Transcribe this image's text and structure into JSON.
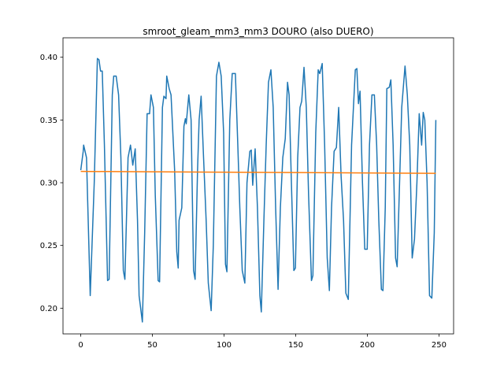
{
  "chart_data": {
    "type": "line",
    "title": "smroot_gleam_mm3_mm3 DOURO (also DUERO)",
    "xlim": [
      -12.4,
      260.2
    ],
    "ylim": [
      0.1795,
      0.4155
    ],
    "xticks": [
      0,
      50,
      100,
      150,
      200,
      250
    ],
    "yticks": [
      {
        "value": 0.2,
        "label": "0.20"
      },
      0.25,
      {
        "value": 0.3,
        "label": "0.30"
      },
      0.35,
      {
        "value": 0.4,
        "label": "0.40"
      }
    ],
    "series": [
      {
        "color": "#1f77b4",
        "x": [
          0,
          1.7,
          2,
          4,
          6.6,
          9.4,
          11.6,
          12.7,
          13.8,
          15,
          16.5,
          18.7,
          19.8,
          22,
          23,
          24.7,
          26.4,
          28,
          29.7,
          30.8,
          33,
          34.7,
          36.3,
          38,
          39.6,
          40.7,
          43,
          44.6,
          46.3,
          48,
          49,
          50.7,
          52,
          54,
          55,
          57,
          58,
          59.5,
          60,
          61.7,
          63,
          65.5,
          67,
          68,
          68.6,
          70.5,
          72,
          73,
          73.6,
          75.4,
          77,
          78.7,
          79.8,
          81.5,
          82.6,
          84,
          85.7,
          87.5,
          89,
          91,
          92.5,
          94.7,
          96.4,
          98,
          99.7,
          101,
          102,
          104,
          105.7,
          107.9,
          109.6,
          111,
          112.7,
          114.5,
          116,
          118,
          119,
          120,
          121.7,
          123.3,
          125,
          126,
          127.8,
          129.4,
          131,
          132.7,
          134.3,
          136,
          137.7,
          139.3,
          141,
          142.7,
          144.3,
          145.4,
          147,
          148.7,
          149.8,
          151.4,
          153,
          154.2,
          155.8,
          157.4,
          159,
          161,
          162,
          164,
          165.7,
          166.8,
          168.5,
          170.2,
          172,
          173.5,
          175,
          176.8,
          178.4,
          180,
          181.7,
          183.4,
          185,
          186.7,
          189,
          191.6,
          192.7,
          193.8,
          194.9,
          196.6,
          198.2,
          199.9,
          201.5,
          203.2,
          204.9,
          206.5,
          208,
          209.8,
          210.9,
          212.5,
          213.6,
          215.3,
          216.4,
          218,
          219.7,
          220.8,
          222.5,
          224,
          226.3,
          227.9,
          229.6,
          231.3,
          232.9,
          234.6,
          236.2,
          237.9,
          239,
          240.1,
          241.7,
          243.4,
          245,
          246.7,
          247.8
        ],
        "values": [
          0.31,
          0.325,
          0.33,
          0.32,
          0.21,
          0.3,
          0.399,
          0.398,
          0.389,
          0.389,
          0.33,
          0.222,
          0.223,
          0.37,
          0.385,
          0.385,
          0.37,
          0.32,
          0.23,
          0.223,
          0.32,
          0.33,
          0.314,
          0.327,
          0.27,
          0.21,
          0.189,
          0.26,
          0.355,
          0.355,
          0.37,
          0.36,
          0.29,
          0.222,
          0.221,
          0.36,
          0.369,
          0.367,
          0.385,
          0.375,
          0.37,
          0.31,
          0.245,
          0.232,
          0.27,
          0.28,
          0.345,
          0.351,
          0.347,
          0.37,
          0.35,
          0.23,
          0.223,
          0.31,
          0.35,
          0.369,
          0.32,
          0.27,
          0.22,
          0.198,
          0.25,
          0.385,
          0.396,
          0.385,
          0.34,
          0.235,
          0.229,
          0.35,
          0.387,
          0.387,
          0.33,
          0.28,
          0.23,
          0.22,
          0.3,
          0.325,
          0.326,
          0.298,
          0.327,
          0.28,
          0.21,
          0.197,
          0.27,
          0.33,
          0.38,
          0.39,
          0.36,
          0.28,
          0.215,
          0.28,
          0.32,
          0.335,
          0.38,
          0.37,
          0.3,
          0.23,
          0.232,
          0.32,
          0.36,
          0.365,
          0.392,
          0.36,
          0.29,
          0.222,
          0.226,
          0.34,
          0.39,
          0.387,
          0.395,
          0.33,
          0.24,
          0.214,
          0.28,
          0.325,
          0.328,
          0.36,
          0.305,
          0.27,
          0.212,
          0.207,
          0.33,
          0.39,
          0.391,
          0.363,
          0.373,
          0.3,
          0.247,
          0.247,
          0.33,
          0.37,
          0.37,
          0.33,
          0.27,
          0.215,
          0.214,
          0.28,
          0.375,
          0.376,
          0.382,
          0.33,
          0.24,
          0.233,
          0.3,
          0.36,
          0.393,
          0.37,
          0.33,
          0.24,
          0.255,
          0.3,
          0.355,
          0.33,
          0.356,
          0.35,
          0.3,
          0.21,
          0.208,
          0.26,
          0.35
        ]
      },
      {
        "color": "#ff7f0e",
        "x": [
          0,
          247.8
        ],
        "values": [
          0.309,
          0.3075
        ]
      }
    ]
  }
}
